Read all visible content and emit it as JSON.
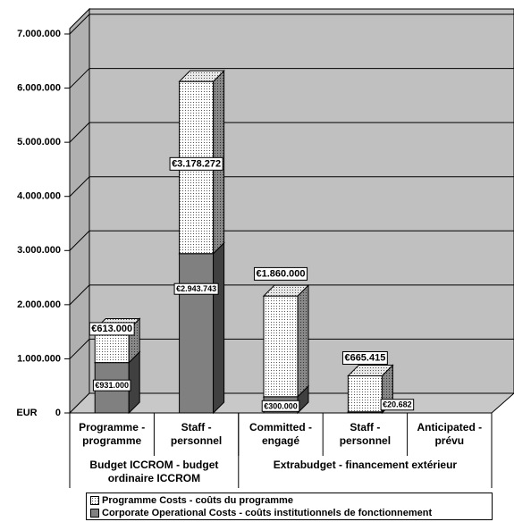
{
  "chart_data": {
    "type": "bar3d_stacked",
    "y_axis_label": "EUR",
    "categories": [
      "Programme - programme",
      "Staff - personnel",
      "Committed - engagé",
      "Staff - personnel",
      "Anticipated - prévu"
    ],
    "groups": [
      {
        "label": "Budget ICCROM - budget ordinaire ICCROM",
        "span": 2
      },
      {
        "label": "Extrabudget - financement extérieur",
        "span": 3
      }
    ],
    "series": [
      {
        "name": "Corporate Operational Costs - coûts institutionnels de fonctionnement",
        "color": "#808080",
        "values": [
          931000,
          2943743,
          300000,
          20682,
          null
        ],
        "value_labels": [
          "€931.000",
          "€2.943.743",
          "€300.000",
          "€20.682",
          null
        ]
      },
      {
        "name": "Programme Costs - coûts du programme",
        "color": "#ffffff",
        "values": [
          613000,
          3178272,
          1860000,
          665415,
          null
        ],
        "value_labels": [
          "€613.000",
          "€3.178.272",
          "€1.860.000",
          "€665.415",
          null
        ]
      }
    ],
    "ylim": [
      0,
      7000000
    ],
    "yticks": [
      {
        "value": 0,
        "label": "0"
      },
      {
        "value": 1000000,
        "label": "1.000.000"
      },
      {
        "value": 2000000,
        "label": "2.000.000"
      },
      {
        "value": 3000000,
        "label": "3.000.000"
      },
      {
        "value": 4000000,
        "label": "4.000.000"
      },
      {
        "value": 5000000,
        "label": "5.000.000"
      },
      {
        "value": 6000000,
        "label": "6.000.000"
      },
      {
        "value": 7000000,
        "label": "7.000.000"
      }
    ],
    "grid": true
  }
}
